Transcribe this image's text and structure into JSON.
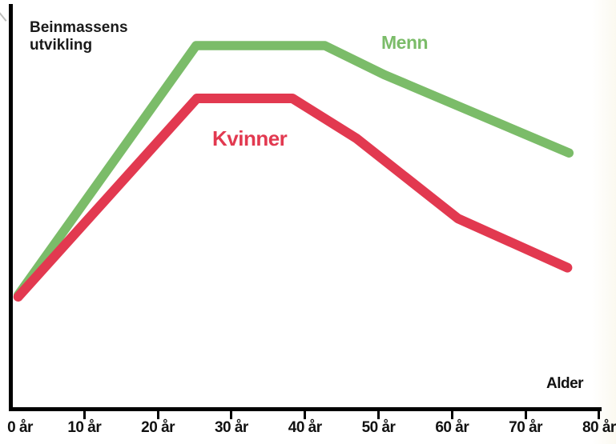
{
  "page": {
    "background": "#ffffff"
  },
  "title": {
    "line1": "Beinmassens",
    "line2": "utvikling",
    "color": "#1a1a1a"
  },
  "axes": {
    "color": "#000000",
    "x_label": "Alder",
    "ticks": [
      {
        "age": 0,
        "label": "0 år"
      },
      {
        "age": 10,
        "label": "10 år"
      },
      {
        "age": 20,
        "label": "20 år"
      },
      {
        "age": 30,
        "label": "30 år"
      },
      {
        "age": 40,
        "label": "40 år"
      },
      {
        "age": 50,
        "label": "50 år"
      },
      {
        "age": 60,
        "label": "60 år"
      },
      {
        "age": 70,
        "label": "70 år"
      },
      {
        "age": 80,
        "label": "80 år"
      }
    ]
  },
  "series": [
    {
      "name": "Menn",
      "color": "#7bbc69",
      "stroke_width": 11.5,
      "points": [
        [
          1,
          31.5
        ],
        [
          25.2,
          100
        ],
        [
          42.7,
          100
        ],
        [
          50.8,
          92
        ],
        [
          75.9,
          70.5
        ]
      ]
    },
    {
      "name": "Kvinner",
      "color": "#e23950",
      "stroke_width": 12,
      "points": [
        [
          1,
          31
        ],
        [
          25.3,
          85.5
        ],
        [
          38.3,
          85.5
        ],
        [
          47,
          74.5
        ],
        [
          60.8,
          52.5
        ],
        [
          75.7,
          39
        ]
      ]
    }
  ],
  "chart_data": {
    "type": "line",
    "title": "Beinmassens utvikling",
    "xlabel": "Alder",
    "ylabel": "",
    "x_unit": "år",
    "x_ticks": [
      "0 år",
      "10 år",
      "20 år",
      "30 år",
      "40 år",
      "50 år",
      "60 år",
      "70 år",
      "80 år"
    ],
    "xlim": [
      0,
      82
    ],
    "ylim": [
      0,
      110
    ],
    "grid": false,
    "legend_position": "inline-labels",
    "value_scale": "relative bone mass (no numeric y-axis shown; men's peak = 100)",
    "series": [
      {
        "name": "Menn",
        "color": "#7bbc69",
        "x": [
          1,
          25,
          43,
          51,
          76
        ],
        "y": [
          31.5,
          100,
          100,
          92,
          70.5
        ]
      },
      {
        "name": "Kvinner",
        "color": "#e23950",
        "x": [
          1,
          25,
          38,
          47,
          61,
          76
        ],
        "y": [
          31,
          85.5,
          85.5,
          74.5,
          52.5,
          39
        ]
      }
    ]
  }
}
